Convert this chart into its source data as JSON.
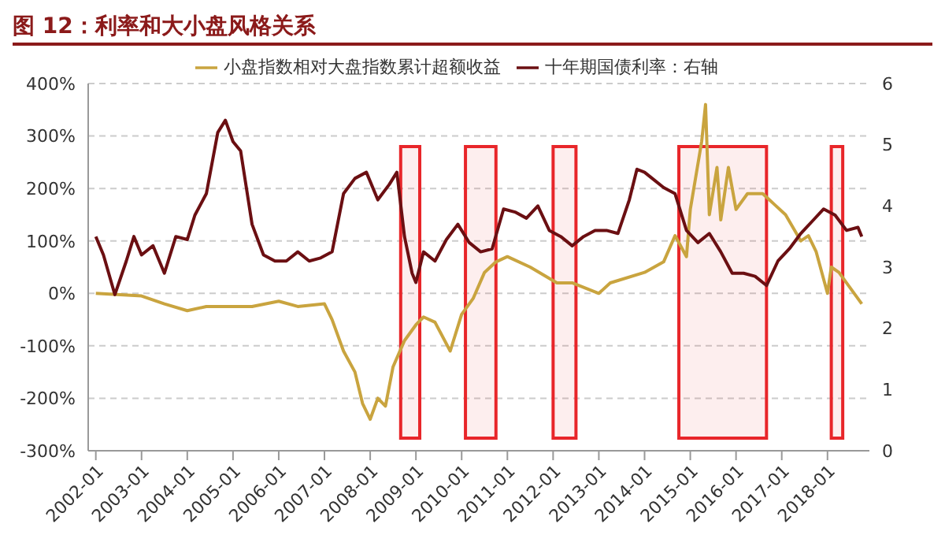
{
  "chart_data": {
    "type": "line",
    "title": "图 12：利率和大小盘风格关系",
    "xlim": [
      "2001-11",
      "2018-12"
    ],
    "xticks": [
      "2002-01",
      "2003-01",
      "2004-01",
      "2005-01",
      "2006-01",
      "2007-01",
      "2008-01",
      "2009-01",
      "2010-01",
      "2011-01",
      "2012-01",
      "2013-01",
      "2014-01",
      "2015-01",
      "2016-01",
      "2017-01",
      "2018-01"
    ],
    "ylim": [
      -300,
      400
    ],
    "yticks": [
      {
        "value": -300,
        "label": "-300%"
      },
      {
        "value": -200,
        "label": "-200%"
      },
      {
        "value": -100,
        "label": "-100%"
      },
      {
        "value": 0,
        "label": "0%"
      },
      {
        "value": 100,
        "label": "100%"
      },
      {
        "value": 200,
        "label": "200%"
      },
      {
        "value": 300,
        "label": "300%"
      },
      {
        "value": 400,
        "label": "400%"
      }
    ],
    "y2lim": [
      0,
      6
    ],
    "y2ticks": [
      0,
      1,
      2,
      3,
      4,
      5,
      6
    ],
    "grid": "y",
    "legend": "top",
    "marker": "none",
    "line_style": "solid",
    "series": [
      {
        "name": "小盘指数相对大盘指数累计超额收益",
        "color": "#c9a43f",
        "x": [
          "2002-01",
          "2003-01",
          "2003-07",
          "2004-01",
          "2004-06",
          "2005-01",
          "2005-06",
          "2006-01",
          "2006-06",
          "2007-01",
          "2007-03",
          "2007-06",
          "2007-09",
          "2007-11",
          "2008-01",
          "2008-03",
          "2008-05",
          "2008-07",
          "2008-10",
          "2009-01",
          "2009-03",
          "2009-06",
          "2009-10",
          "2010-01",
          "2010-04",
          "2010-07",
          "2010-10",
          "2011-01",
          "2011-07",
          "2012-02",
          "2012-06",
          "2013-01",
          "2013-04",
          "2014-01",
          "2014-06",
          "2014-09",
          "2014-12",
          "2015-01",
          "2015-04",
          "2015-05",
          "2015-06",
          "2015-08",
          "2015-09",
          "2015-11",
          "2016-01",
          "2016-04",
          "2016-08",
          "2016-11",
          "2017-02",
          "2017-06",
          "2017-08",
          "2017-10",
          "2018-01",
          "2018-02",
          "2018-04",
          "2018-07",
          "2018-10"
        ],
        "values": [
          0,
          -5,
          -20,
          -33,
          -25,
          -25,
          -25,
          -15,
          -25,
          -20,
          -50,
          -110,
          -150,
          -210,
          -240,
          -200,
          -215,
          -140,
          -90,
          -60,
          -45,
          -55,
          -110,
          -40,
          -10,
          40,
          60,
          70,
          50,
          20,
          20,
          0,
          20,
          40,
          60,
          110,
          70,
          160,
          290,
          360,
          150,
          240,
          140,
          240,
          160,
          190,
          190,
          170,
          150,
          100,
          110,
          80,
          0,
          50,
          40,
          10,
          -20
        ],
        "axis": "y"
      },
      {
        "name": "十年期国债利率：右轴",
        "color": "#6b0f12",
        "x": [
          "2002-01",
          "2002-03",
          "2002-06",
          "2002-09",
          "2002-11",
          "2003-01",
          "2003-04",
          "2003-07",
          "2003-10",
          "2004-01",
          "2004-03",
          "2004-06",
          "2004-09",
          "2004-11",
          "2005-01",
          "2005-03",
          "2005-06",
          "2005-09",
          "2005-12",
          "2006-03",
          "2006-06",
          "2006-09",
          "2006-12",
          "2007-03",
          "2007-06",
          "2007-09",
          "2007-12",
          "2008-03",
          "2008-06",
          "2008-08",
          "2008-10",
          "2008-12",
          "2009-01",
          "2009-03",
          "2009-06",
          "2009-09",
          "2009-12",
          "2010-03",
          "2010-06",
          "2010-09",
          "2010-12",
          "2011-03",
          "2011-06",
          "2011-09",
          "2011-12",
          "2012-03",
          "2012-06",
          "2012-09",
          "2012-12",
          "2013-03",
          "2013-06",
          "2013-09",
          "2013-11",
          "2014-01",
          "2014-03",
          "2014-06",
          "2014-09",
          "2014-12",
          "2015-03",
          "2015-06",
          "2015-09",
          "2015-12",
          "2016-03",
          "2016-06",
          "2016-09",
          "2016-12",
          "2017-03",
          "2017-06",
          "2017-09",
          "2017-12",
          "2018-03",
          "2018-06",
          "2018-09",
          "2018-10"
        ],
        "values": [
          3.5,
          3.2,
          2.55,
          3.1,
          3.5,
          3.2,
          3.35,
          2.9,
          3.5,
          3.45,
          3.85,
          4.2,
          5.2,
          5.4,
          5.05,
          4.9,
          3.7,
          3.2,
          3.1,
          3.1,
          3.25,
          3.1,
          3.15,
          3.25,
          4.2,
          4.45,
          4.55,
          4.1,
          4.35,
          4.55,
          3.5,
          2.9,
          2.75,
          3.25,
          3.1,
          3.45,
          3.7,
          3.4,
          3.25,
          3.3,
          3.95,
          3.9,
          3.8,
          4.0,
          3.6,
          3.5,
          3.35,
          3.5,
          3.6,
          3.6,
          3.55,
          4.1,
          4.6,
          4.55,
          4.45,
          4.3,
          4.2,
          3.6,
          3.4,
          3.55,
          3.25,
          2.9,
          2.9,
          2.85,
          2.7,
          3.1,
          3.3,
          3.55,
          3.75,
          3.95,
          3.85,
          3.6,
          3.65,
          3.5
        ],
        "axis": "y2"
      }
    ],
    "bands": [
      {
        "axis": "x",
        "from": "2008-09",
        "to": "2009-02",
        "color": "#e8262a"
      },
      {
        "axis": "x",
        "from": "2010-02",
        "to": "2010-10",
        "color": "#e8262a"
      },
      {
        "axis": "x",
        "from": "2012-01",
        "to": "2012-07",
        "color": "#e8262a"
      },
      {
        "axis": "x",
        "from": "2014-10",
        "to": "2016-09",
        "color": "#e8262a"
      },
      {
        "axis": "x",
        "from": "2018-02",
        "to": "2018-05",
        "color": "#e8262a"
      }
    ]
  }
}
